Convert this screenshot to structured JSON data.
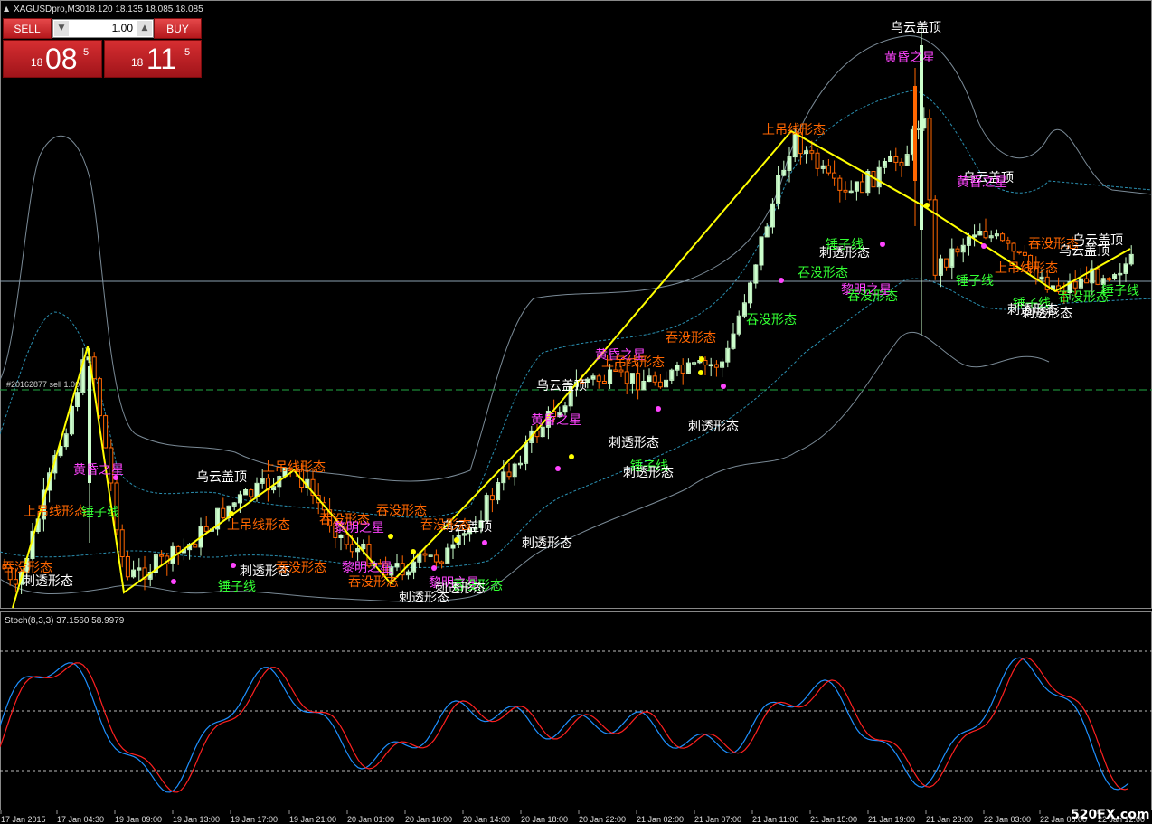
{
  "window": {
    "title": "XAGUSDpro,M30",
    "ohlc": "18.120 18.135 18.085 18.085"
  },
  "trade_panel": {
    "sell_label": "SELL",
    "buy_label": "BUY",
    "lot_value": "1.00",
    "bid_small": "18",
    "bid_big": "08",
    "bid_sup": "5",
    "ask_small": "18",
    "ask_big": "11",
    "ask_sup": "5"
  },
  "order_line_label": "#20162877 sell 1.00",
  "indicator_label": "Stoch(8,3,3) 37.1560 58.9979",
  "watermark": "520FX.com",
  "time_axis": [
    "17 Jan 2015",
    "17 Jan 04:30",
    "19 Jan 09:00",
    "19 Jan 13:00",
    "19 Jan 17:00",
    "19 Jan 21:00",
    "20 Jan 01:00",
    "20 Jan 10:00",
    "20 Jan 14:00",
    "20 Jan 18:00",
    "20 Jan 22:00",
    "21 Jan 02:00",
    "21 Jan 07:00",
    "21 Jan 11:00",
    "21 Jan 15:00",
    "21 Jan 19:00",
    "21 Jan 23:00",
    "22 Jan 03:00",
    "22 Jan 08:00",
    "22 Jan 12:00"
  ],
  "pattern_labels": {
    "dark_cloud": "乌云盖顶",
    "evening_star": "黄昏之星",
    "hanging_man": "上吊线形态",
    "piercing": "刺透形态",
    "hammer": "锤子线",
    "engulfing": "吞没形态",
    "morning_star": "黎明之星"
  },
  "colors": {
    "background": "#000000",
    "bull_candle": "#ccffcc",
    "bear_candle": "#ff6600",
    "zigzag": "#ffff00",
    "stoch_main": "#1e90ff",
    "stoch_signal": "#ff2020",
    "label_white": "#ffffff",
    "label_orange": "#ff6600",
    "label_magenta": "#ff44ff",
    "label_green": "#33ff33"
  }
}
